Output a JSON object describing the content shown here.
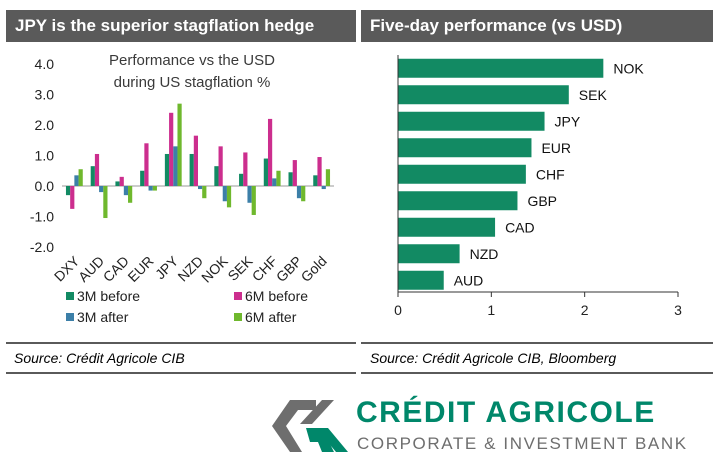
{
  "left_panel": {
    "title": "JPY is the superior stagflation hedge",
    "source": "Source: Crédit Agricole CIB"
  },
  "right_panel": {
    "title": "Five-day performance (vs USD)",
    "source": "Source: Crédit Agricole CIB, Bloomberg"
  },
  "logo": {
    "name": "CRÉDIT AGRICOLE",
    "subtitle": "CORPORATE & INVESTMENT BANK"
  },
  "colors": {
    "header_bg": "#5a5a5a",
    "bar_green": "#128a63",
    "brand_green": "#00876a",
    "magenta": "#cc2e8e",
    "steel_blue": "#3c7fa8",
    "light_green": "#6fb82d"
  },
  "chart_data": [
    {
      "type": "bar",
      "title": "Performance vs the USD during US stagflation %",
      "categories": [
        "DXY",
        "AUD",
        "CAD",
        "EUR",
        "JPY",
        "NZD",
        "NOK",
        "SEK",
        "CHF",
        "GBP",
        "Gold"
      ],
      "series": [
        {
          "name": "3M before",
          "color": "#128a63",
          "values": [
            -0.3,
            0.65,
            0.15,
            0.5,
            1.05,
            1.05,
            0.65,
            0.4,
            0.9,
            0.45,
            0.35
          ]
        },
        {
          "name": "6M before",
          "color": "#cc2e8e",
          "values": [
            -0.75,
            1.05,
            0.3,
            1.4,
            2.4,
            1.65,
            1.3,
            1.1,
            2.2,
            0.85,
            0.95
          ]
        },
        {
          "name": "3M after",
          "color": "#3c7fa8",
          "values": [
            0.35,
            -0.2,
            -0.3,
            -0.15,
            1.3,
            -0.1,
            -0.5,
            -0.55,
            0.25,
            -0.4,
            -0.1
          ]
        },
        {
          "name": "6M after",
          "color": "#6fb82d",
          "values": [
            0.55,
            -1.05,
            -0.55,
            -0.15,
            2.7,
            -0.4,
            -0.7,
            -0.95,
            0.5,
            -0.5,
            0.55
          ]
        }
      ],
      "ylim": [
        -2.0,
        4.0
      ],
      "yticks": [
        "4.0",
        "3.0",
        "2.0",
        "1.0",
        "0.0",
        "-1.0",
        "-2.0"
      ],
      "legend": "bottom"
    },
    {
      "type": "bar",
      "orientation": "horizontal",
      "categories": [
        "NOK",
        "SEK",
        "JPY",
        "EUR",
        "CHF",
        "GBP",
        "CAD",
        "NZD",
        "AUD"
      ],
      "values": [
        2.2,
        1.83,
        1.57,
        1.43,
        1.37,
        1.28,
        1.04,
        0.66,
        0.49
      ],
      "xlim": [
        0,
        3
      ],
      "xticks": [
        "0",
        "1",
        "2",
        "3"
      ],
      "color": "#128a63"
    }
  ]
}
